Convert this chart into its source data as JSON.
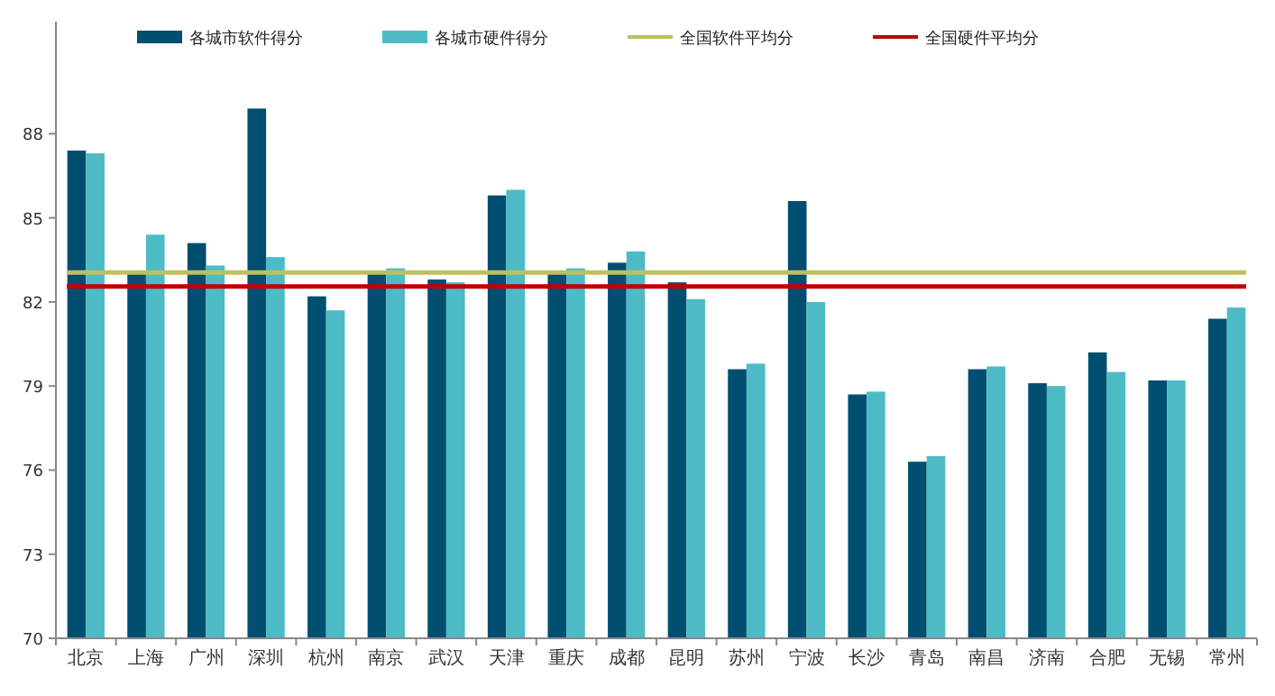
{
  "chart_data": {
    "type": "bar",
    "categories": [
      "北京",
      "上海",
      "广州",
      "深圳",
      "杭州",
      "南京",
      "武汉",
      "天津",
      "重庆",
      "成都",
      "昆明",
      "苏州",
      "宁波",
      "长沙",
      "青岛",
      "南昌",
      "济南",
      "合肥",
      "无锡",
      "常州"
    ],
    "series": [
      {
        "name": "各城市软件得分",
        "color": "#004f71",
        "values": [
          87.4,
          83.1,
          84.1,
          88.9,
          82.2,
          83.1,
          82.8,
          85.8,
          83.0,
          83.4,
          82.7,
          79.6,
          85.6,
          78.7,
          76.3,
          79.6,
          79.1,
          80.2,
          79.2,
          81.4
        ]
      },
      {
        "name": "各城市硬件得分",
        "color": "#4dbbc5",
        "values": [
          87.3,
          84.4,
          83.3,
          83.6,
          81.7,
          83.2,
          82.7,
          86.0,
          83.2,
          83.8,
          82.1,
          79.8,
          82.0,
          78.8,
          76.5,
          79.7,
          79.0,
          79.5,
          79.2,
          81.8
        ]
      }
    ],
    "ref_lines": [
      {
        "axis": "y",
        "value": 83.05,
        "label": "全国软件平均分",
        "color": "#bfbf5f"
      },
      {
        "axis": "y",
        "value": 82.55,
        "label": "全国硬件平均分",
        "color": "#c00000"
      }
    ],
    "ylim": [
      70,
      92
    ],
    "yticks": [
      70,
      73,
      76,
      79,
      82,
      85,
      88
    ],
    "legend": "top",
    "grid": false
  }
}
